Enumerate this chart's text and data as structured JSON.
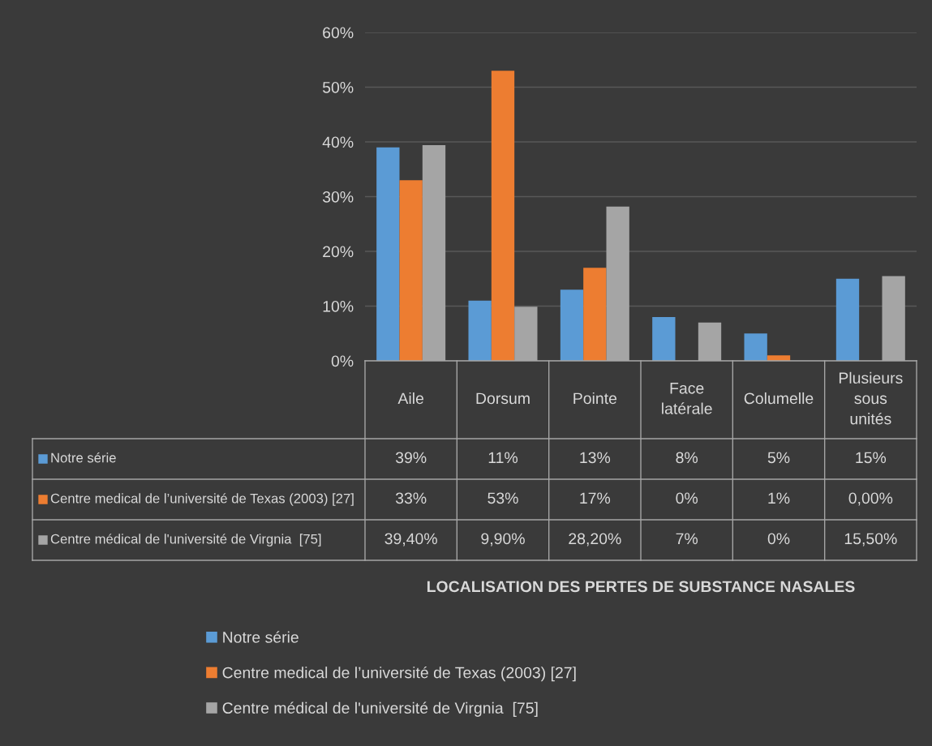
{
  "chart_data": {
    "type": "bar",
    "categories": [
      "Aile",
      "Dorsum",
      "Pointe",
      "Face\nlatérale",
      "Columelle",
      "Plusieurs\nsous\nunités"
    ],
    "series": [
      {
        "name": "Notre série",
        "color": "#5b9bd5",
        "values": [
          39,
          11,
          13,
          8,
          5,
          15
        ],
        "value_labels": [
          "39%",
          "11%",
          "13%",
          "8%",
          "5%",
          "15%"
        ]
      },
      {
        "name": "Centre medical de l’université de Texas (2003) [27]",
        "color": "#ed7d31",
        "values": [
          33,
          53,
          17,
          0,
          1,
          0
        ],
        "value_labels": [
          "33%",
          "53%",
          "17%",
          "0%",
          "1%",
          "0,00%"
        ]
      },
      {
        "name": "Centre médical de l'université de Virgnia  [75]",
        "color": "#a5a5a5",
        "values": [
          39.4,
          9.9,
          28.2,
          7,
          0,
          15.5
        ],
        "value_labels": [
          "39,40%",
          "9,90%",
          "28,20%",
          "7%",
          "0%",
          "15,50%"
        ]
      }
    ],
    "annotations": [
      "LOCALISATION DES PERTES DE SUBSTANCE NASALES"
    ],
    "ylim": [
      0,
      60
    ],
    "yticks": [
      {
        "value": 0,
        "label": "0%"
      },
      {
        "value": 10,
        "label": "10%"
      },
      {
        "value": 20,
        "label": "20%"
      },
      {
        "value": 30,
        "label": "30%"
      },
      {
        "value": 40,
        "label": "40%"
      },
      {
        "value": 50,
        "label": "50%"
      },
      {
        "value": 60,
        "label": "60%"
      }
    ],
    "grid": "y",
    "legend": "bottom"
  }
}
